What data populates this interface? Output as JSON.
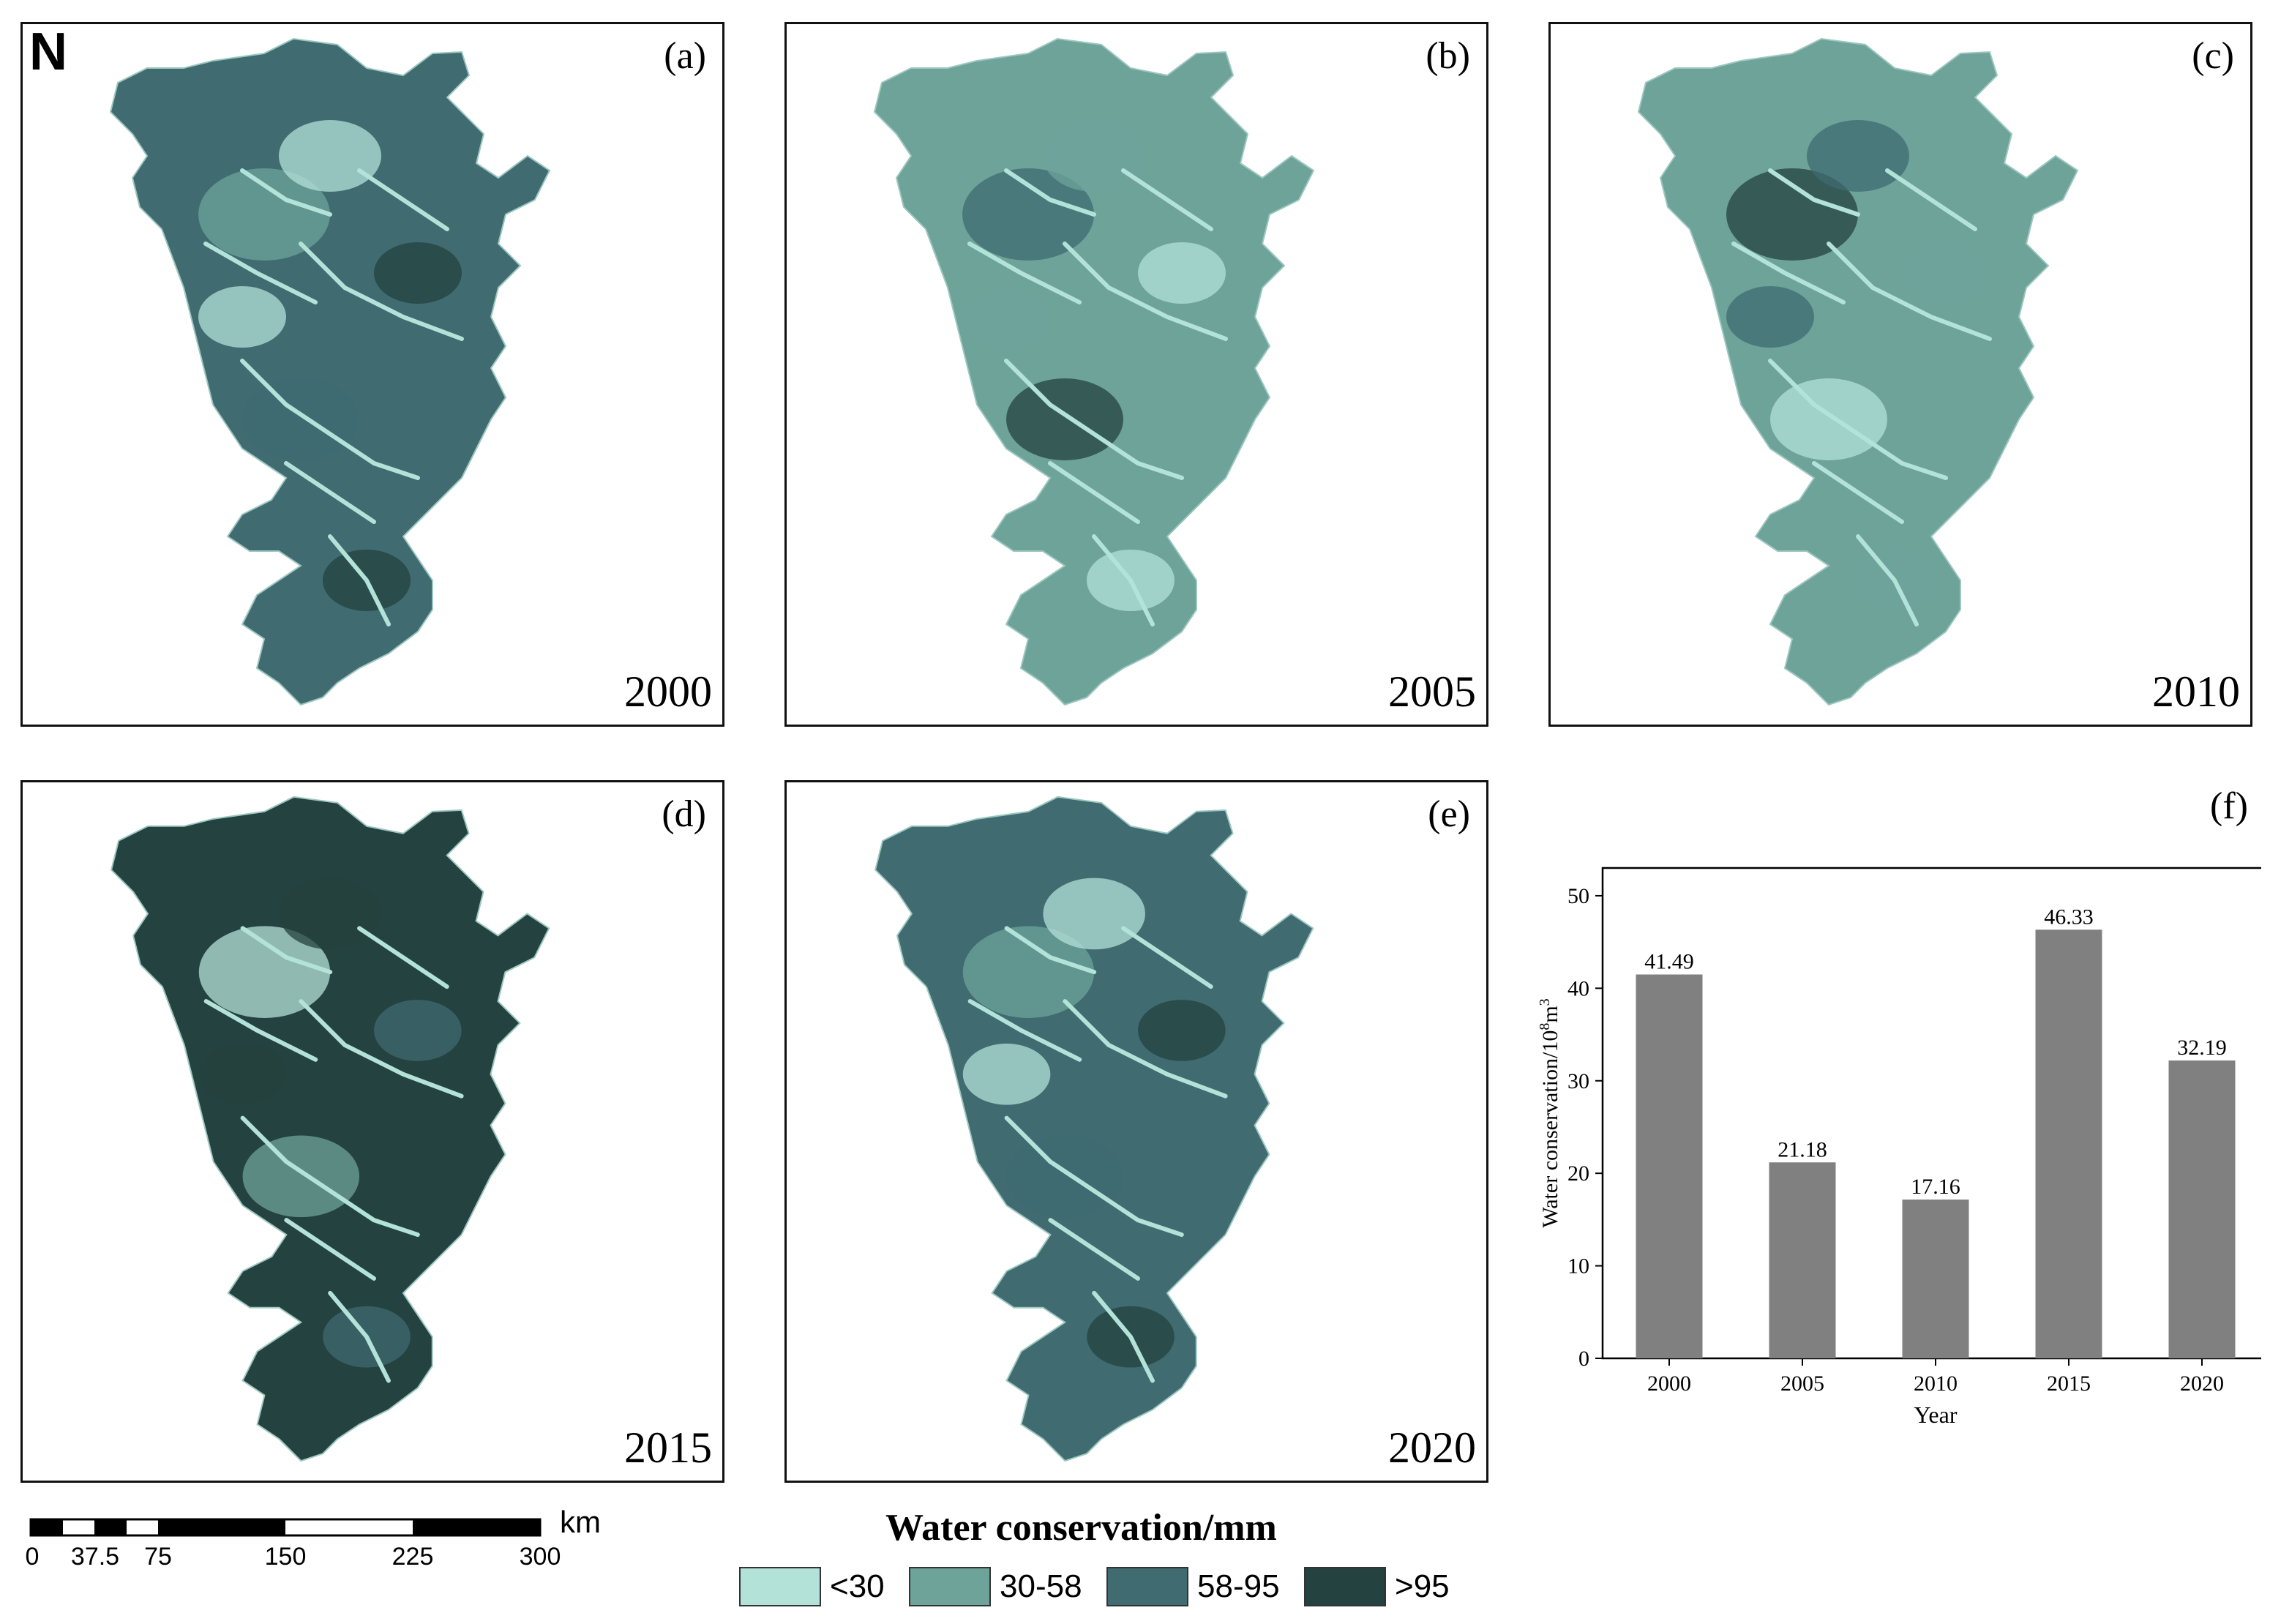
{
  "colors": {
    "class1": "#b3e2d8",
    "class2": "#6ea39a",
    "class3": "#3f6b71",
    "class4": "#24423f",
    "bar": "#808080"
  },
  "panels": [
    {
      "letter": "(a)",
      "year": "2000",
      "dominant": "class3"
    },
    {
      "letter": "(b)",
      "year": "2005",
      "dominant": "class2"
    },
    {
      "letter": "(c)",
      "year": "2010",
      "dominant": "class2"
    },
    {
      "letter": "(d)",
      "year": "2015",
      "dominant": "class4"
    },
    {
      "letter": "(e)",
      "year": "2020",
      "dominant": "class3"
    }
  ],
  "north": {
    "label": "N",
    "icon": "north-arrow-icon"
  },
  "scalebar": {
    "ticks": [
      "0",
      "37.5",
      "75",
      "150",
      "225",
      "300"
    ],
    "unit": "km"
  },
  "legend": {
    "title": "Water conservation/mm",
    "classes": [
      {
        "label": "<30",
        "color_key": "class1"
      },
      {
        "label": "30-58",
        "color_key": "class2"
      },
      {
        "label": "58-95",
        "color_key": "class3"
      },
      {
        "label": ">95",
        "color_key": "class4"
      }
    ]
  },
  "chart_panel": {
    "letter": "(f)"
  },
  "chart_data": {
    "type": "bar",
    "categories": [
      "2000",
      "2005",
      "2010",
      "2015",
      "2020"
    ],
    "values": [
      41.49,
      21.18,
      17.16,
      46.33,
      32.19
    ],
    "data_labels": [
      "41.49",
      "21.18",
      "17.16",
      "46.33",
      "32.19"
    ],
    "xlabel": "Year",
    "ylabel": "Water conservation/10",
    "ylabel_sup1": "8",
    "ylabel_unit": "m",
    "ylabel_sup2": "3",
    "ylim": [
      0,
      53
    ],
    "yticks": [
      0,
      10,
      20,
      30,
      40,
      50
    ],
    "grid": false
  }
}
